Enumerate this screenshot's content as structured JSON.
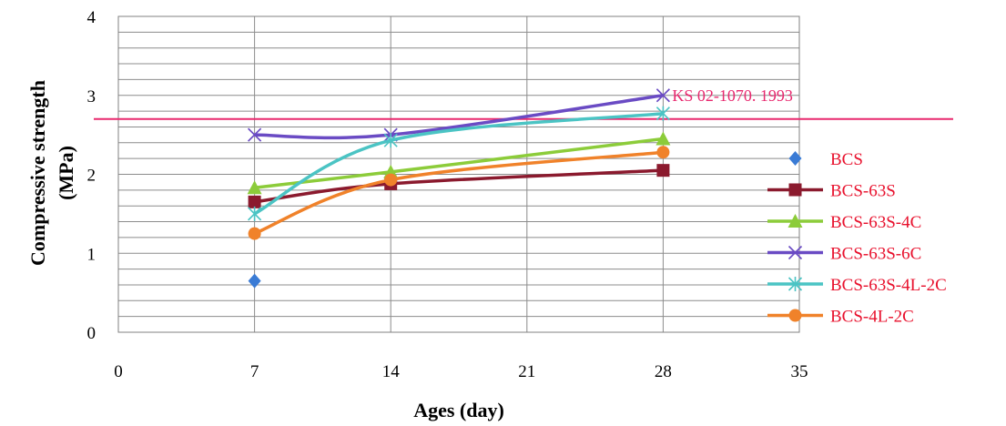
{
  "chart_data": {
    "type": "line",
    "xlabel": "Ages (day)",
    "ylabel_lines": [
      "Compressive strength",
      "(MPa)"
    ],
    "xlim": [
      0,
      35
    ],
    "ylim": [
      0,
      4
    ],
    "x_ticks": [
      0,
      7,
      14,
      21,
      28,
      35
    ],
    "y_ticks": [
      0,
      1,
      2,
      3,
      4
    ],
    "grid": true,
    "legend_position": "right",
    "reference_line": {
      "value": 2.7,
      "label": "KS 02-1070. 1993",
      "color": "#e8286e"
    },
    "series": [
      {
        "name": "BCS",
        "color": "#3a7bd5",
        "marker": "diamond",
        "x": [
          7
        ],
        "y": [
          0.65
        ]
      },
      {
        "name": "BCS-63S",
        "color": "#8b1a2e",
        "marker": "square",
        "x": [
          7,
          14,
          28
        ],
        "y": [
          1.65,
          1.88,
          2.05
        ]
      },
      {
        "name": "BCS-63S-4C",
        "color": "#8ccc3a",
        "marker": "triangle",
        "x": [
          7,
          14,
          28
        ],
        "y": [
          1.83,
          2.03,
          2.45
        ]
      },
      {
        "name": "BCS-63S-6C",
        "color": "#6a4bc4",
        "marker": "x",
        "x": [
          7,
          14,
          28
        ],
        "y": [
          2.5,
          2.5,
          3.0
        ]
      },
      {
        "name": "BCS-63S-4L-2C",
        "color": "#4bc4c4",
        "marker": "star",
        "x": [
          7,
          14,
          28
        ],
        "y": [
          1.5,
          2.43,
          2.77
        ]
      },
      {
        "name": "BCS-4L-2C",
        "color": "#f0822a",
        "marker": "circle",
        "x": [
          7,
          14,
          28
        ],
        "y": [
          1.25,
          1.93,
          2.28
        ]
      }
    ]
  }
}
